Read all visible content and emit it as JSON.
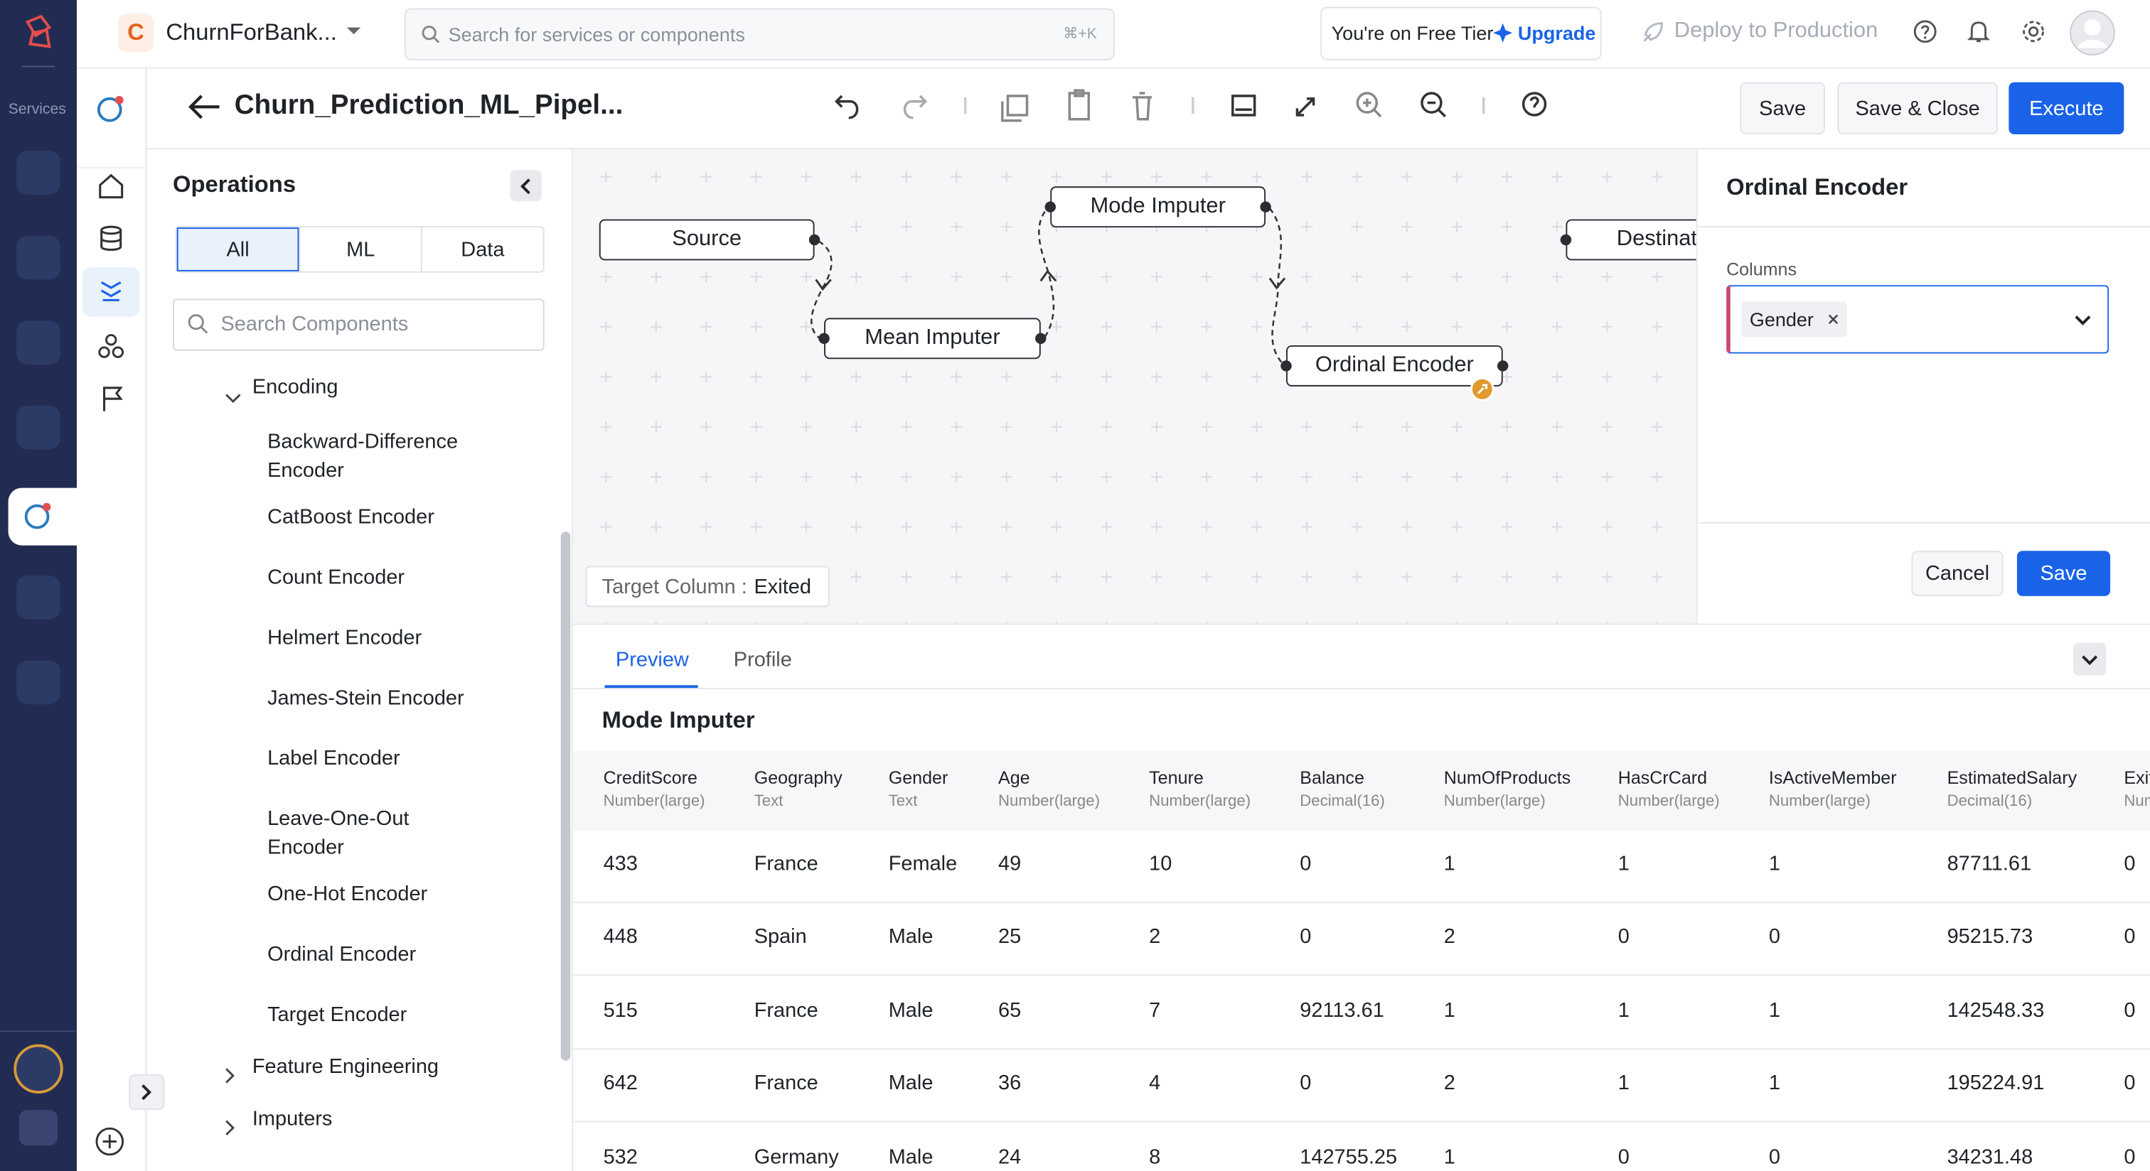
{
  "app": {
    "services_label": "Services",
    "project_initial": "C",
    "project": "ChurnForBank...",
    "search_placeholder": "Search for services or components",
    "search_shortcut": "⌘+K",
    "tier_text": "You're on Free Tier",
    "upgrade": "Upgrade",
    "deploy": "Deploy to Production"
  },
  "pipeline": {
    "title": "Churn_Prediction_ML_Pipel...",
    "save": "Save",
    "save_close": "Save & Close",
    "execute": "Execute"
  },
  "operations": {
    "title": "Operations",
    "tabs": [
      "All",
      "ML",
      "Data"
    ],
    "search_placeholder": "Search Components",
    "groups": [
      {
        "name": "Encoding",
        "items": [
          "Backward-Difference Encoder",
          "CatBoost Encoder",
          "Count Encoder",
          "Helmert Encoder",
          "James-Stein Encoder",
          "Label Encoder",
          "Leave-One-Out Encoder",
          "One-Hot Encoder",
          "Ordinal Encoder",
          "Target Encoder"
        ]
      },
      {
        "name": "Feature Engineering"
      },
      {
        "name": "Imputers"
      }
    ]
  },
  "canvas": {
    "nodes": [
      {
        "label": "Source"
      },
      {
        "label": "Mean Imputer"
      },
      {
        "label": "Mode Imputer"
      },
      {
        "label": "Ordinal Encoder"
      },
      {
        "label": "Destination"
      }
    ],
    "target_label": "Target Column :",
    "target_value": "Exited"
  },
  "panel": {
    "title": "Ordinal Encoder",
    "field_label": "Columns",
    "selected": [
      "Gender"
    ],
    "cancel": "Cancel",
    "save": "Save"
  },
  "preview": {
    "tabs": [
      "Preview",
      "Profile"
    ],
    "title": "Mode Imputer",
    "columns": [
      {
        "name": "CreditScore",
        "type": "Number(large)"
      },
      {
        "name": "Geography",
        "type": "Text"
      },
      {
        "name": "Gender",
        "type": "Text"
      },
      {
        "name": "Age",
        "type": "Number(large)"
      },
      {
        "name": "Tenure",
        "type": "Number(large)"
      },
      {
        "name": "Balance",
        "type": "Decimal(16)"
      },
      {
        "name": "NumOfProducts",
        "type": "Number(large)"
      },
      {
        "name": "HasCrCard",
        "type": "Number(large)"
      },
      {
        "name": "IsActiveMember",
        "type": "Number(large)"
      },
      {
        "name": "EstimatedSalary",
        "type": "Decimal(16)"
      },
      {
        "name": "Exited",
        "type": "Number(large)"
      }
    ],
    "rows": [
      [
        433,
        "France",
        "Female",
        49,
        10,
        0,
        1,
        1,
        1,
        87711.61,
        0
      ],
      [
        448,
        "Spain",
        "Male",
        25,
        2,
        0,
        2,
        0,
        0,
        95215.73,
        0
      ],
      [
        515,
        "France",
        "Male",
        65,
        7,
        92113.61,
        1,
        1,
        1,
        142548.33,
        0
      ],
      [
        642,
        "France",
        "Male",
        36,
        4,
        0,
        2,
        1,
        1,
        195224.91,
        0
      ],
      [
        532,
        "Germany",
        "Male",
        24,
        8,
        142755.25,
        1,
        0,
        0,
        34231.48,
        0
      ]
    ]
  }
}
